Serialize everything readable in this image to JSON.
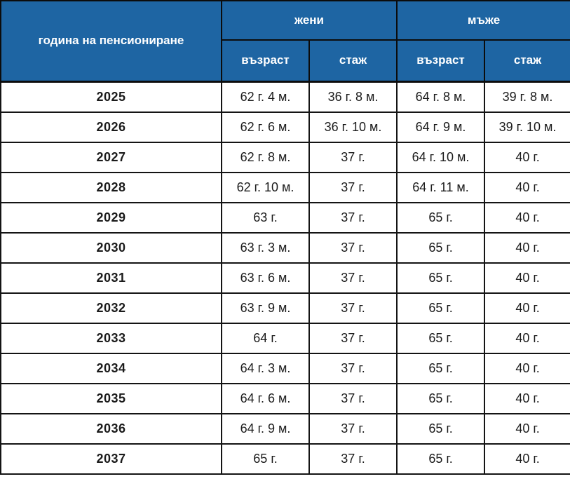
{
  "table": {
    "header": {
      "year_col": "година на пенсиониране",
      "group_women": "жени",
      "group_men": "мъже",
      "sub_age_women": "възраст",
      "sub_service_women": "стаж",
      "sub_age_men": "възраст",
      "sub_service_men": "стаж"
    },
    "rows": [
      {
        "year": "2025",
        "w_age": "62 г. 4 м.",
        "w_service": "36 г. 8 м.",
        "m_age": "64 г. 8 м.",
        "m_service": "39 г. 8 м."
      },
      {
        "year": "2026",
        "w_age": "62 г. 6 м.",
        "w_service": "36 г. 10 м.",
        "m_age": "64 г. 9 м.",
        "m_service": "39 г. 10 м."
      },
      {
        "year": "2027",
        "w_age": "62 г. 8 м.",
        "w_service": "37 г.",
        "m_age": "64 г. 10 м.",
        "m_service": "40 г."
      },
      {
        "year": "2028",
        "w_age": "62 г. 10 м.",
        "w_service": "37 г.",
        "m_age": "64 г. 11 м.",
        "m_service": "40 г."
      },
      {
        "year": "2029",
        "w_age": "63 г.",
        "w_service": "37 г.",
        "m_age": "65 г.",
        "m_service": "40 г."
      },
      {
        "year": "2030",
        "w_age": "63 г. 3 м.",
        "w_service": "37 г.",
        "m_age": "65 г.",
        "m_service": "40 г."
      },
      {
        "year": "2031",
        "w_age": "63 г. 6 м.",
        "w_service": "37 г.",
        "m_age": "65 г.",
        "m_service": "40 г."
      },
      {
        "year": "2032",
        "w_age": "63 г. 9 м.",
        "w_service": "37 г.",
        "m_age": "65 г.",
        "m_service": "40 г."
      },
      {
        "year": "2033",
        "w_age": "64 г.",
        "w_service": "37 г.",
        "m_age": "65 г.",
        "m_service": "40 г."
      },
      {
        "year": "2034",
        "w_age": "64 г. 3 м.",
        "w_service": "37 г.",
        "m_age": "65 г.",
        "m_service": "40 г."
      },
      {
        "year": "2035",
        "w_age": "64 г. 6 м.",
        "w_service": "37 г.",
        "m_age": "65 г.",
        "m_service": "40 г."
      },
      {
        "year": "2036",
        "w_age": "64 г. 9 м.",
        "w_service": "37 г.",
        "m_age": "65 г.",
        "m_service": "40 г."
      },
      {
        "year": "2037",
        "w_age": "65 г.",
        "w_service": "37 г.",
        "m_age": "65 г.",
        "m_service": "40 г."
      }
    ],
    "colors": {
      "header_bg": "#1e65a3",
      "header_text": "#ffffff",
      "border": "#141414",
      "row_bg": "#ffffff",
      "data_text": "#1b1b1b"
    }
  },
  "chart_data": {
    "type": "table",
    "title": "",
    "columns": [
      "година на пенсиониране",
      "жени – възраст",
      "жени – стаж",
      "мъже – възраст",
      "мъже – стаж"
    ],
    "rows": [
      [
        "2025",
        "62 г. 4 м.",
        "36 г. 8 м.",
        "64 г. 8 м.",
        "39 г. 8 м."
      ],
      [
        "2026",
        "62 г. 6 м.",
        "36 г. 10 м.",
        "64 г. 9 м.",
        "39 г. 10 м."
      ],
      [
        "2027",
        "62 г. 8 м.",
        "37 г.",
        "64 г. 10 м.",
        "40 г."
      ],
      [
        "2028",
        "62 г. 10 м.",
        "37 г.",
        "64 г. 11 м.",
        "40 г."
      ],
      [
        "2029",
        "63 г.",
        "37 г.",
        "65 г.",
        "40 г."
      ],
      [
        "2030",
        "63 г. 3 м.",
        "37 г.",
        "65 г.",
        "40 г."
      ],
      [
        "2031",
        "63 г. 6 м.",
        "37 г.",
        "65 г.",
        "40 г."
      ],
      [
        "2032",
        "63 г. 9 м.",
        "37 г.",
        "65 г.",
        "40 г."
      ],
      [
        "2033",
        "64 г.",
        "37 г.",
        "65 г.",
        "40 г."
      ],
      [
        "2034",
        "64 г. 3 м.",
        "37 г.",
        "65 г.",
        "40 г."
      ],
      [
        "2035",
        "64 г. 6 м.",
        "37 г.",
        "65 г.",
        "40 г."
      ],
      [
        "2036",
        "64 г. 9 м.",
        "37 г.",
        "65 г.",
        "40 г."
      ],
      [
        "2037",
        "65 г.",
        "37 г.",
        "65 г.",
        "40 г."
      ]
    ]
  }
}
